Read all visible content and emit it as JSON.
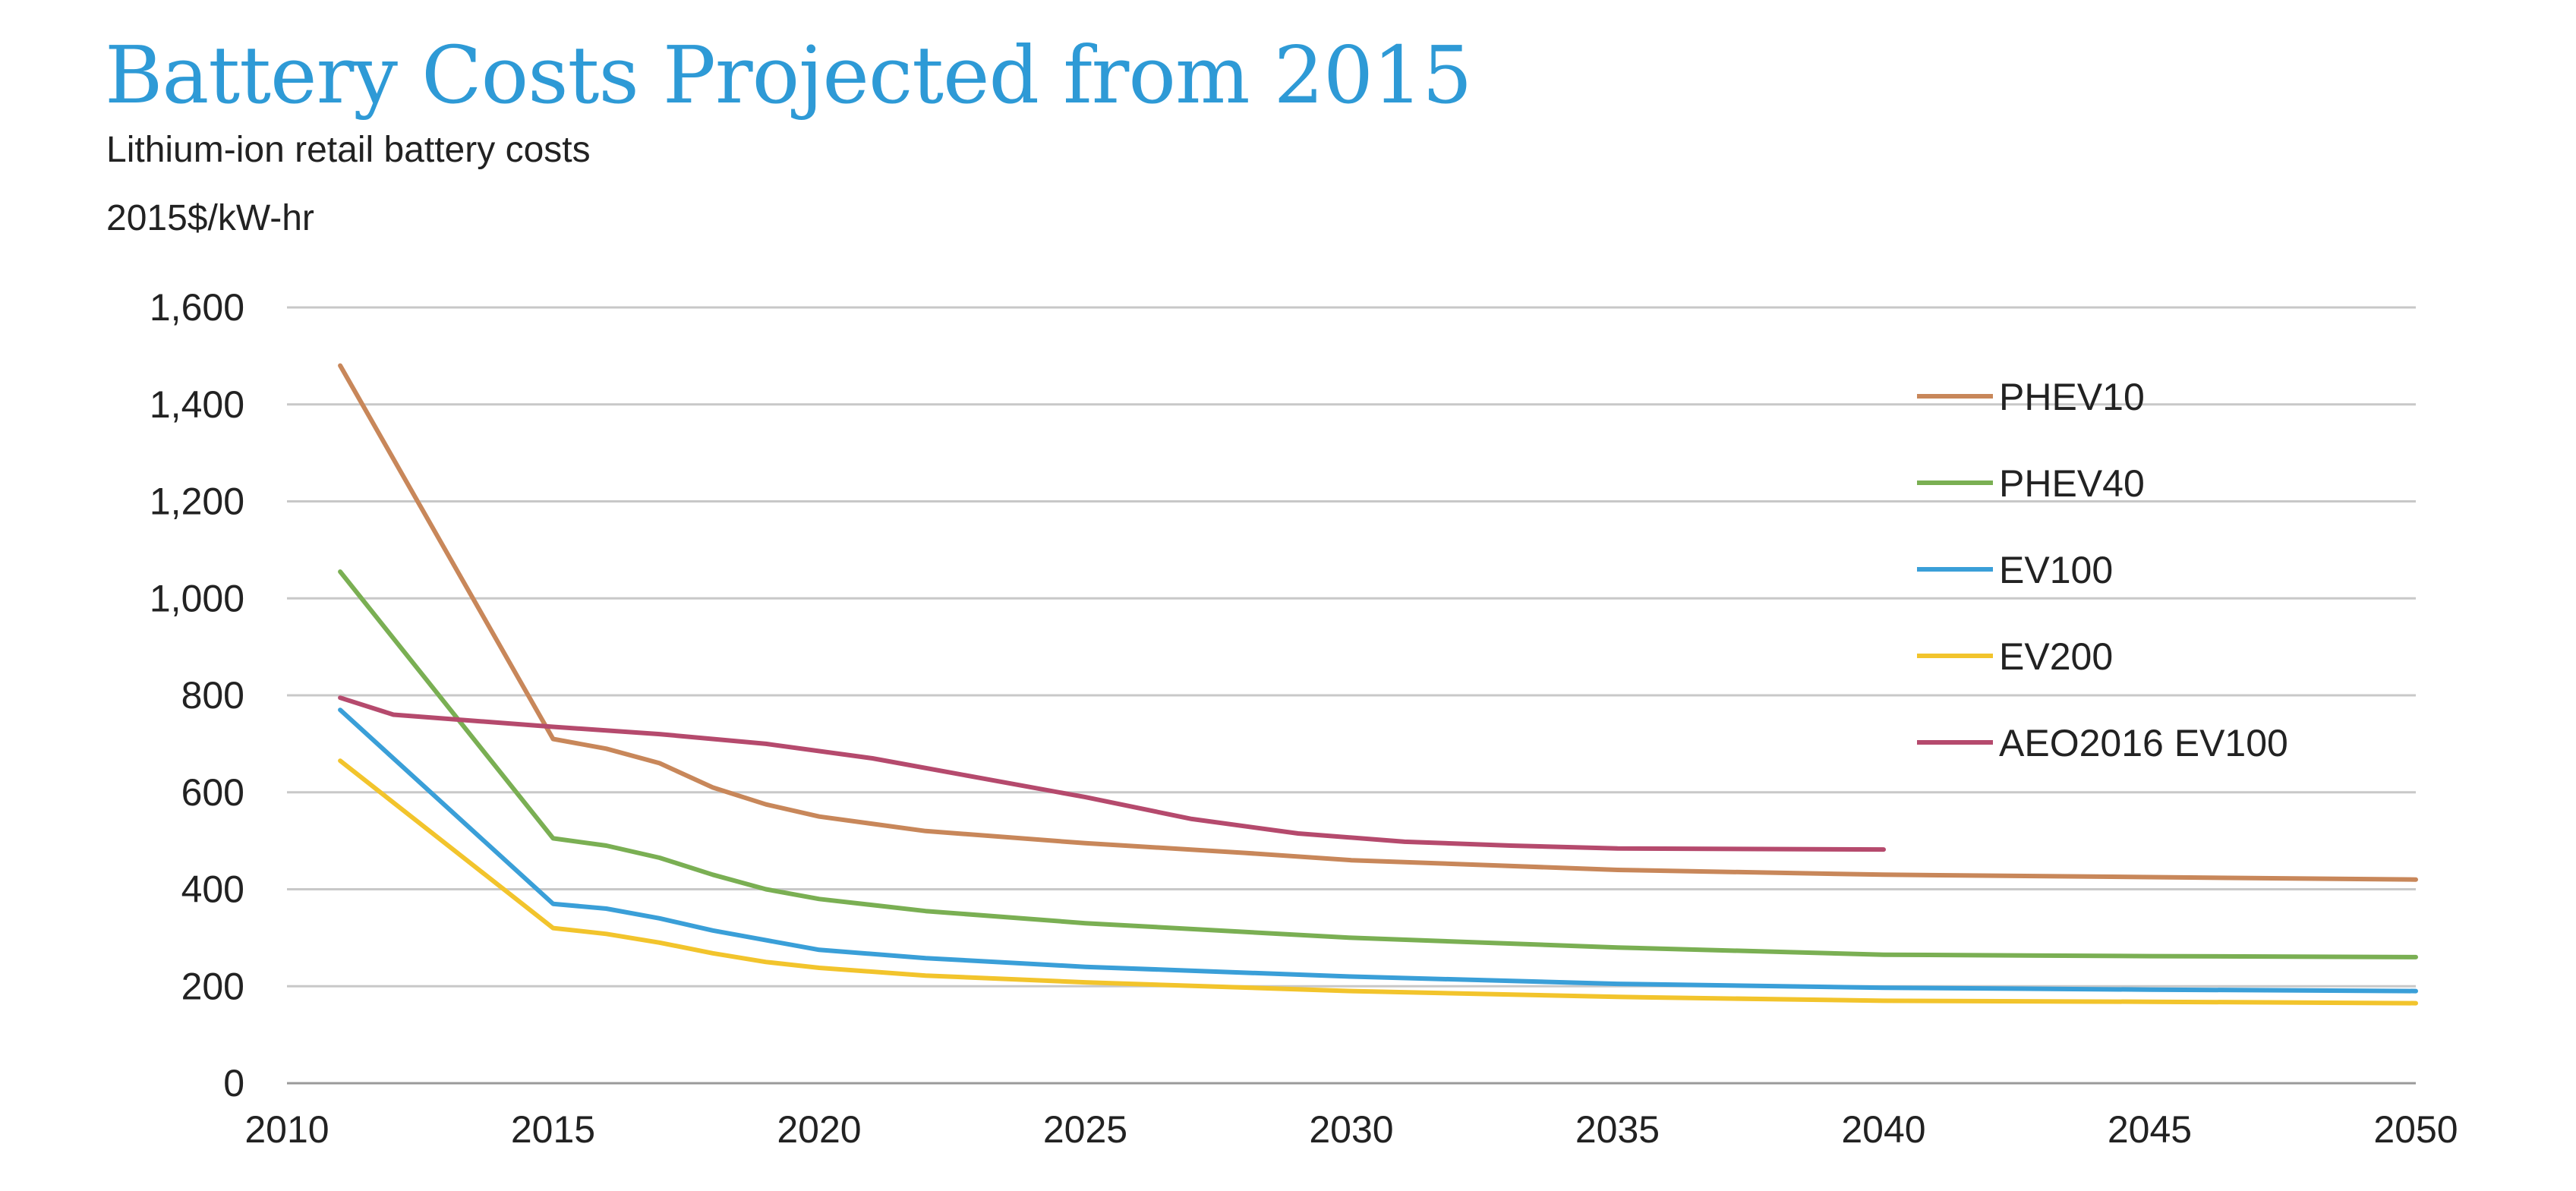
{
  "chart_data": {
    "type": "line",
    "title": "Battery Costs Projected from 2015",
    "subtitle": "Lithium-ion retail battery costs",
    "ylabel": "2015$/kW-hr",
    "xlabel": "",
    "xlim": [
      2010,
      2050
    ],
    "ylim": [
      0,
      1600
    ],
    "x_ticks": [
      2010,
      2015,
      2020,
      2025,
      2030,
      2035,
      2040,
      2045,
      2050
    ],
    "x_tick_labels": [
      "2010",
      "2015",
      "2020",
      "2025",
      "2030",
      "2035",
      "2040",
      "2045",
      "2050"
    ],
    "y_ticks": [
      0,
      200,
      400,
      600,
      800,
      1000,
      1200,
      1400,
      1600
    ],
    "y_tick_labels": [
      "0",
      "200",
      "400",
      "600",
      "800",
      "1,000",
      "1,200",
      "1,400",
      "1,600"
    ],
    "grid": "horizontal",
    "legend_position": "right",
    "series": [
      {
        "name": "PHEV10",
        "color": "#c8875a",
        "points": [
          [
            2011,
            1480
          ],
          [
            2015,
            710
          ],
          [
            2016,
            690
          ],
          [
            2017,
            660
          ],
          [
            2018,
            610
          ],
          [
            2019,
            575
          ],
          [
            2020,
            550
          ],
          [
            2022,
            520
          ],
          [
            2025,
            495
          ],
          [
            2028,
            475
          ],
          [
            2030,
            460
          ],
          [
            2035,
            440
          ],
          [
            2040,
            430
          ],
          [
            2045,
            425
          ],
          [
            2050,
            420
          ]
        ]
      },
      {
        "name": "PHEV40",
        "color": "#7aaf53",
        "points": [
          [
            2011,
            1055
          ],
          [
            2015,
            505
          ],
          [
            2016,
            490
          ],
          [
            2017,
            465
          ],
          [
            2018,
            430
          ],
          [
            2019,
            400
          ],
          [
            2020,
            380
          ],
          [
            2022,
            355
          ],
          [
            2025,
            330
          ],
          [
            2030,
            300
          ],
          [
            2035,
            280
          ],
          [
            2040,
            265
          ],
          [
            2045,
            262
          ],
          [
            2050,
            260
          ]
        ]
      },
      {
        "name": "EV100",
        "color": "#3a9fd8",
        "points": [
          [
            2011,
            770
          ],
          [
            2015,
            370
          ],
          [
            2016,
            360
          ],
          [
            2017,
            340
          ],
          [
            2018,
            315
          ],
          [
            2019,
            295
          ],
          [
            2020,
            275
          ],
          [
            2022,
            258
          ],
          [
            2025,
            240
          ],
          [
            2030,
            220
          ],
          [
            2035,
            205
          ],
          [
            2040,
            197
          ],
          [
            2045,
            193
          ],
          [
            2050,
            190
          ]
        ]
      },
      {
        "name": "EV200",
        "color": "#f2c42c",
        "points": [
          [
            2011,
            665
          ],
          [
            2015,
            320
          ],
          [
            2016,
            308
          ],
          [
            2017,
            290
          ],
          [
            2018,
            268
          ],
          [
            2019,
            250
          ],
          [
            2020,
            238
          ],
          [
            2022,
            222
          ],
          [
            2025,
            208
          ],
          [
            2030,
            190
          ],
          [
            2035,
            178
          ],
          [
            2040,
            170
          ],
          [
            2045,
            168
          ],
          [
            2050,
            165
          ]
        ]
      },
      {
        "name": "AEO2016 EV100",
        "color": "#b54a6d",
        "points": [
          [
            2011,
            795
          ],
          [
            2012,
            760
          ],
          [
            2015,
            735
          ],
          [
            2017,
            720
          ],
          [
            2019,
            700
          ],
          [
            2021,
            670
          ],
          [
            2023,
            630
          ],
          [
            2025,
            590
          ],
          [
            2027,
            545
          ],
          [
            2029,
            515
          ],
          [
            2031,
            498
          ],
          [
            2033,
            490
          ],
          [
            2035,
            484
          ],
          [
            2040,
            482
          ]
        ]
      }
    ]
  }
}
